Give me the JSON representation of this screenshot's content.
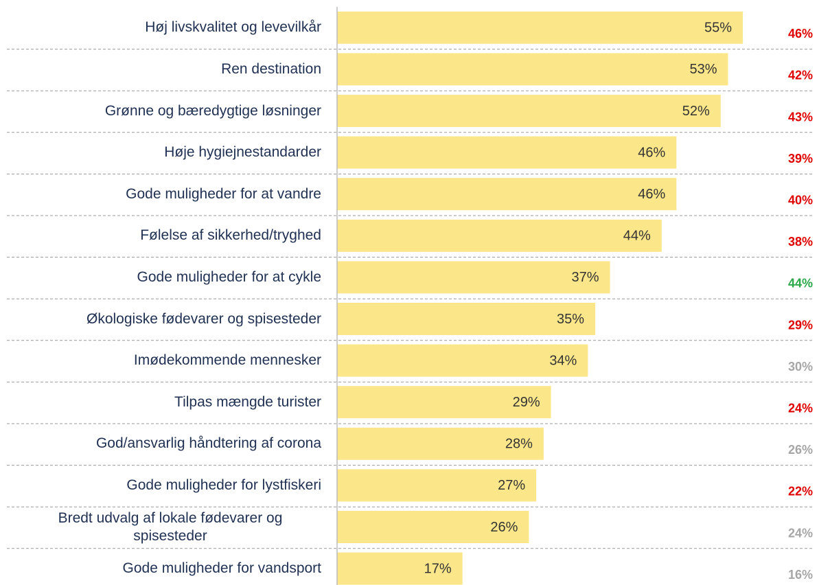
{
  "chart_data": {
    "type": "bar",
    "orientation": "horizontal",
    "categories": [
      "Høj livskvalitet og levevilkår",
      "Ren destination",
      "Grønne og bæredygtige løsninger",
      "Høje hygiejnestandarder",
      "Gode muligheder for at vandre",
      "Følelse af sikkerhed/tryghed",
      "Gode muligheder for at cykle",
      "Økologiske fødevarer og spisesteder",
      "Imødekommende mennesker",
      "Tilpas mængde turister",
      "God/ansvarlig håndtering af corona",
      "Gode muligheder for lystfiskeri",
      "Bredt udvalg af lokale fødevarer og spisesteder",
      "Gode muligheder for vandsport"
    ],
    "values": [
      55,
      53,
      52,
      46,
      46,
      44,
      37,
      35,
      34,
      29,
      28,
      27,
      26,
      17
    ],
    "value_labels": [
      "55%",
      "53%",
      "52%",
      "46%",
      "46%",
      "44%",
      "37%",
      "35%",
      "34%",
      "29%",
      "28%",
      "27%",
      "26%",
      "17%"
    ],
    "color": "#fce68a",
    "comparison_values": [
      46,
      42,
      43,
      39,
      40,
      38,
      44,
      29,
      30,
      24,
      26,
      22,
      24,
      16
    ],
    "comparison_value_labels": [
      "46%",
      "42%",
      "43%",
      "39%",
      "40%",
      "38%",
      "44%",
      "29%",
      "30%",
      "24%",
      "26%",
      "22%",
      "24%",
      "16%"
    ],
    "comparison_colors": [
      "#e00000",
      "#e00000",
      "#e00000",
      "#e00000",
      "#e00000",
      "#e00000",
      "#2ba84a",
      "#e00000",
      "#a6a6a6",
      "#e00000",
      "#a6a6a6",
      "#e00000",
      "#a6a6a6",
      "#a6a6a6"
    ],
    "xlim": [
      0,
      55
    ]
  }
}
